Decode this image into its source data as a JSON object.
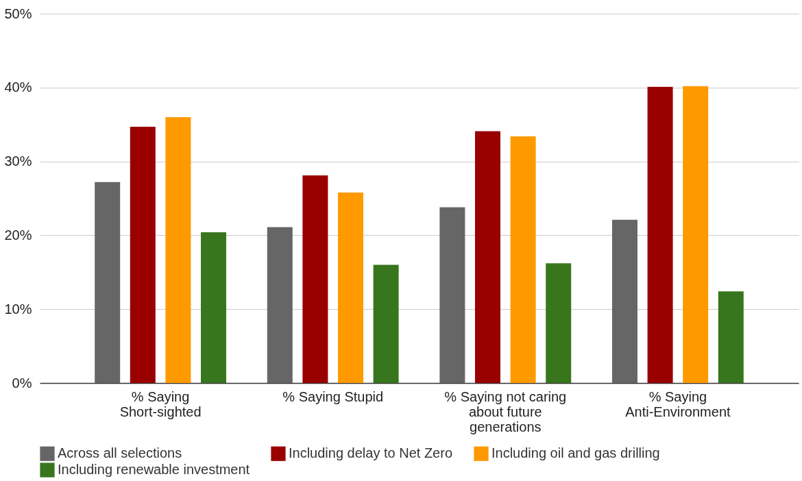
{
  "chart_data": {
    "type": "bar",
    "categories": [
      "% Saying\nShort-sighted",
      "% Saying Stupid",
      "% Saying not caring\nabout future\ngenerations",
      "% Saying\nAnti-Environment"
    ],
    "series": [
      {
        "name": "Across all selections",
        "color": "#666666",
        "values": [
          27.2,
          21.1,
          23.8,
          22.1
        ]
      },
      {
        "name": "Including delay to Net Zero",
        "color": "#990000",
        "values": [
          34.7,
          28.1,
          34.1,
          40.1
        ]
      },
      {
        "name": "Including oil and gas drilling",
        "color": "#ff9900",
        "values": [
          36.0,
          25.8,
          33.4,
          40.2
        ]
      },
      {
        "name": "Including renewable investment",
        "color": "#38761d",
        "values": [
          20.4,
          16.0,
          16.2,
          12.4
        ]
      }
    ],
    "ylim": [
      0,
      50
    ],
    "yticks": [
      {
        "value": 0,
        "label": "0%"
      },
      {
        "value": 10,
        "label": "10%"
      },
      {
        "value": 20,
        "label": "20%"
      },
      {
        "value": 30,
        "label": "30%"
      },
      {
        "value": 40,
        "label": "40%"
      },
      {
        "value": 50,
        "label": "50%"
      }
    ],
    "grid": "y",
    "legend": "bottom"
  }
}
